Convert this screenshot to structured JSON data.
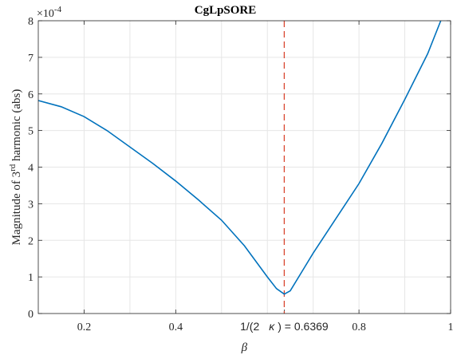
{
  "chart_data": {
    "type": "line",
    "title": "CgLpSORE",
    "xlabel": "β",
    "ylabel_prefix": "Magnitude of 3",
    "ylabel_sup": "rd",
    "ylabel_suffix": " harmonic (abs)",
    "exponent_label": "×10",
    "exponent_power": "-4",
    "xlim": [
      0.1,
      1.0
    ],
    "ylim": [
      0,
      8
    ],
    "grid": true,
    "x_ticks": [
      {
        "value": 0.2,
        "label": "0.2"
      },
      {
        "value": 0.4,
        "label": "0.4"
      },
      {
        "value": 0.8,
        "label": "0.8"
      },
      {
        "value": 1.0,
        "label": "1"
      }
    ],
    "y_ticks": [
      {
        "value": 0,
        "label": "0"
      },
      {
        "value": 1,
        "label": "1"
      },
      {
        "value": 2,
        "label": "2"
      },
      {
        "value": 3,
        "label": "3"
      },
      {
        "value": 4,
        "label": "4"
      },
      {
        "value": 5,
        "label": "5"
      },
      {
        "value": 6,
        "label": "6"
      },
      {
        "value": 7,
        "label": "7"
      },
      {
        "value": 8,
        "label": "8"
      }
    ],
    "vline": {
      "x": 0.6369,
      "label_left": "1/(2",
      "label_kappa": "κ",
      "label_right": ") = 0.6369",
      "color": "#d9452f"
    },
    "series": [
      {
        "color": "#0072bd",
        "x": [
          0.1,
          0.15,
          0.2,
          0.25,
          0.3,
          0.35,
          0.4,
          0.45,
          0.5,
          0.55,
          0.6,
          0.62,
          0.6369,
          0.65,
          0.7,
          0.75,
          0.8,
          0.85,
          0.9,
          0.95,
          0.9785
        ],
        "y": [
          5.82,
          5.65,
          5.38,
          5.0,
          4.55,
          4.1,
          3.62,
          3.1,
          2.55,
          1.85,
          1.0,
          0.68,
          0.53,
          0.62,
          1.65,
          2.6,
          3.55,
          4.65,
          5.85,
          7.1,
          8.0
        ]
      }
    ]
  }
}
